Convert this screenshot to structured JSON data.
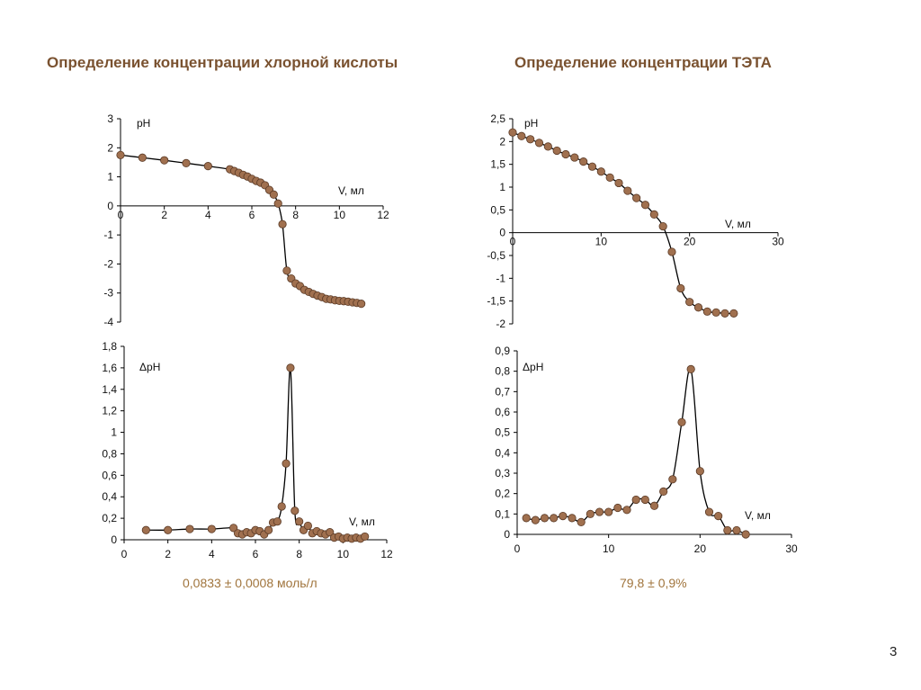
{
  "slide": {
    "page_number": "3",
    "marker_color": "#a0704f",
    "title_color": "#7a5230",
    "result_color": "#a0743c"
  },
  "sections": {
    "left": {
      "title": "Определение концентрации хлорной кислоты",
      "result": "0,0833 ± 0,0008 моль/л"
    },
    "right": {
      "title": "Определение концентрации ТЭТА",
      "result": "79,8 ± 0,9%"
    }
  },
  "chart_data": [
    {
      "id": "hclo4-ph",
      "type": "line",
      "title": "",
      "xlabel": "V, мл",
      "ylabel": "pH",
      "xlim": [
        0,
        12
      ],
      "ylim": [
        -4,
        3
      ],
      "xticks": [
        "0",
        "2",
        "4",
        "6",
        "8",
        "10",
        "12"
      ],
      "yticks": [
        "3",
        "2",
        "1",
        "0",
        "-1",
        "-2",
        "-3",
        "-4"
      ],
      "ytick_values": [
        3,
        2,
        1,
        0,
        -1,
        -2,
        -3,
        -4
      ],
      "xtick_values": [
        0,
        2,
        4,
        6,
        8,
        10,
        12
      ],
      "grid": false,
      "x_axis_at_zero": true,
      "series": [
        {
          "name": "pH",
          "x": [
            0,
            1,
            2,
            3,
            4,
            5,
            5.2,
            5.4,
            5.6,
            5.8,
            6.0,
            6.2,
            6.4,
            6.6,
            6.8,
            7.0,
            7.2,
            7.4,
            7.6,
            7.8,
            8.0,
            8.2,
            8.4,
            8.6,
            8.8,
            9.0,
            9.2,
            9.4,
            9.6,
            9.8,
            10.0,
            10.2,
            10.4,
            10.6,
            10.8,
            11.0
          ],
          "y": [
            1.75,
            1.66,
            1.57,
            1.47,
            1.37,
            1.26,
            1.2,
            1.14,
            1.07,
            1.01,
            0.93,
            0.86,
            0.8,
            0.71,
            0.55,
            0.39,
            0.08,
            -0.63,
            -2.23,
            -2.5,
            -2.67,
            -2.76,
            -2.89,
            -2.96,
            -3.03,
            -3.09,
            -3.14,
            -3.2,
            -3.22,
            -3.25,
            -3.27,
            -3.28,
            -3.3,
            -3.32,
            -3.34,
            -3.37
          ]
        }
      ]
    },
    {
      "id": "hclo4-dph",
      "type": "line",
      "title": "",
      "xlabel": "V, мл",
      "ylabel": "ΔpH",
      "xlim": [
        0,
        12
      ],
      "ylim": [
        0,
        1.8
      ],
      "xticks": [
        "0",
        "2",
        "4",
        "6",
        "8",
        "10",
        "12"
      ],
      "xtick_values": [
        0,
        2,
        4,
        6,
        8,
        10,
        12
      ],
      "yticks": [
        "0",
        "0,2",
        "0,4",
        "0,6",
        "0,8",
        "1",
        "1,2",
        "1,4",
        "1,6",
        "1,8"
      ],
      "ytick_values": [
        0,
        0.2,
        0.4,
        0.6,
        0.8,
        1,
        1.2,
        1.4,
        1.6,
        1.8
      ],
      "grid": false,
      "series": [
        {
          "name": "ΔpH",
          "x": [
            1,
            2,
            3,
            4,
            5,
            5.2,
            5.4,
            5.6,
            5.8,
            6.0,
            6.2,
            6.4,
            6.6,
            6.8,
            7.0,
            7.2,
            7.4,
            7.6,
            7.8,
            8.0,
            8.2,
            8.4,
            8.6,
            8.8,
            9.0,
            9.2,
            9.4,
            9.6,
            9.8,
            10.0,
            10.2,
            10.4,
            10.6,
            10.8,
            11.0
          ],
          "y": [
            0.09,
            0.09,
            0.1,
            0.1,
            0.11,
            0.06,
            0.05,
            0.07,
            0.06,
            0.09,
            0.08,
            0.05,
            0.09,
            0.16,
            0.17,
            0.31,
            0.71,
            1.6,
            0.27,
            0.17,
            0.09,
            0.13,
            0.06,
            0.08,
            0.06,
            0.05,
            0.07,
            0.02,
            0.03,
            0.01,
            0.02,
            0.01,
            0.02,
            0.01,
            0.03
          ]
        }
      ]
    },
    {
      "id": "teta-ph",
      "type": "line",
      "title": "",
      "xlabel": "V, мл",
      "ylabel": "pH",
      "xlim": [
        0,
        30
      ],
      "ylim": [
        -2,
        2.5
      ],
      "xticks": [
        "0",
        "10",
        "20",
        "30"
      ],
      "xtick_values": [
        0,
        10,
        20,
        30
      ],
      "yticks": [
        "2,5",
        "2",
        "1,5",
        "1",
        "0,5",
        "0",
        "-0,5",
        "-1",
        "-1,5",
        "-2"
      ],
      "ytick_values": [
        2.5,
        2,
        1.5,
        1,
        0.5,
        0,
        -0.5,
        -1,
        -1.5,
        -2
      ],
      "grid": false,
      "x_axis_at_zero": true,
      "series": [
        {
          "name": "pH",
          "x": [
            0,
            1,
            2,
            3,
            4,
            5,
            6,
            7,
            8,
            9,
            10,
            11,
            12,
            13,
            14,
            15,
            16,
            17,
            18,
            19,
            20,
            21,
            22,
            23,
            24,
            25
          ],
          "y": [
            2.2,
            2.12,
            2.05,
            1.97,
            1.89,
            1.8,
            1.72,
            1.65,
            1.56,
            1.45,
            1.34,
            1.21,
            1.09,
            0.92,
            0.76,
            0.61,
            0.4,
            0.14,
            -0.42,
            -1.22,
            -1.52,
            -1.64,
            -1.73,
            -1.75,
            -1.77,
            -1.77
          ]
        }
      ]
    },
    {
      "id": "teta-dph",
      "type": "line",
      "title": "",
      "xlabel": "V, мл",
      "ylabel": "ΔpH",
      "xlim": [
        0,
        30
      ],
      "ylim": [
        0,
        0.9
      ],
      "xticks": [
        "0",
        "10",
        "20",
        "30"
      ],
      "xtick_values": [
        0,
        10,
        20,
        30
      ],
      "yticks": [
        "0",
        "0,1",
        "0,2",
        "0,3",
        "0,4",
        "0,5",
        "0,6",
        "0,7",
        "0,8",
        "0,9"
      ],
      "ytick_values": [
        0,
        0.1,
        0.2,
        0.3,
        0.4,
        0.5,
        0.6,
        0.7,
        0.8,
        0.9
      ],
      "grid": false,
      "series": [
        {
          "name": "ΔpH",
          "x": [
            1,
            2,
            3,
            4,
            5,
            6,
            7,
            8,
            9,
            10,
            11,
            12,
            13,
            14,
            15,
            16,
            17,
            18,
            19,
            20,
            21,
            22,
            23,
            24,
            25
          ],
          "y": [
            0.08,
            0.07,
            0.08,
            0.08,
            0.09,
            0.08,
            0.06,
            0.1,
            0.11,
            0.11,
            0.13,
            0.12,
            0.17,
            0.17,
            0.14,
            0.21,
            0.27,
            0.55,
            0.81,
            0.31,
            0.11,
            0.09,
            0.02,
            0.02,
            0.0
          ]
        }
      ]
    }
  ]
}
